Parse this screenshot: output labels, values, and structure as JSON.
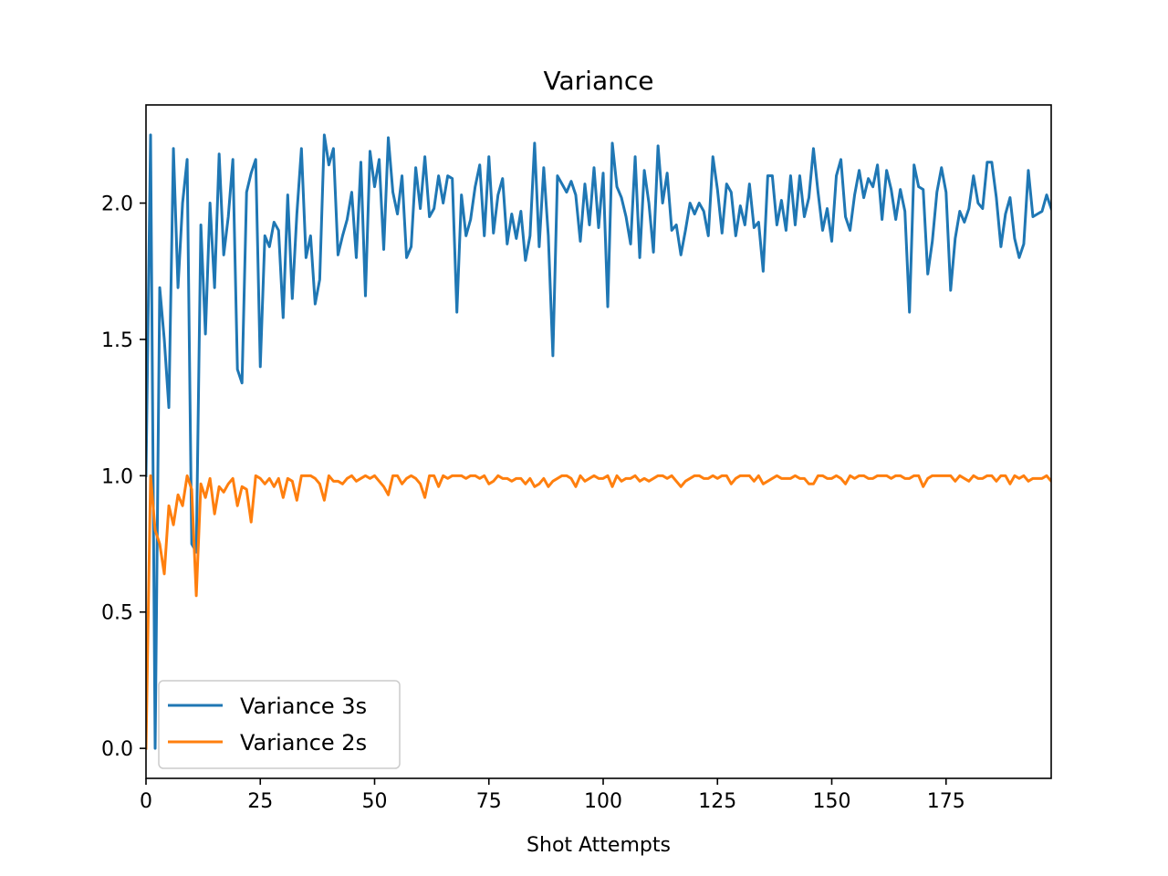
{
  "chart_data": {
    "type": "line",
    "title": "Variance",
    "xlabel": "Shot Attempts",
    "ylabel": "",
    "xlim": [
      0,
      198
    ],
    "ylim": [
      -0.11,
      2.36
    ],
    "xticks": [
      0,
      25,
      50,
      75,
      100,
      125,
      150,
      175
    ],
    "xtick_labels": [
      "0",
      "25",
      "50",
      "75",
      "100",
      "125",
      "150",
      "175"
    ],
    "yticks": [
      0.0,
      0.5,
      1.0,
      1.5,
      2.0
    ],
    "ytick_labels": [
      "0.0",
      "0.5",
      "1.0",
      "1.5",
      "2.0"
    ],
    "grid": false,
    "legend": {
      "placement": "lower-left"
    },
    "series": [
      {
        "name": "Variance 3s",
        "color": "#1f77b4",
        "values": [
          1.0,
          2.25,
          0.0,
          1.69,
          1.5,
          1.25,
          2.2,
          1.69,
          2.0,
          2.16,
          0.75,
          0.72,
          1.92,
          1.52,
          2.0,
          1.69,
          2.18,
          1.81,
          1.95,
          2.16,
          1.39,
          1.34,
          2.04,
          2.11,
          2.16,
          1.4,
          1.88,
          1.84,
          1.93,
          1.9,
          1.58,
          2.03,
          1.65,
          1.96,
          2.2,
          1.8,
          1.88,
          1.63,
          1.72,
          2.25,
          2.14,
          2.2,
          1.81,
          1.88,
          1.94,
          2.04,
          1.8,
          2.15,
          1.66,
          2.19,
          2.06,
          2.16,
          1.83,
          2.24,
          2.04,
          1.96,
          2.1,
          1.8,
          1.84,
          2.13,
          1.98,
          2.17,
          1.95,
          1.98,
          2.1,
          2.0,
          2.1,
          2.09,
          1.6,
          2.03,
          1.88,
          1.94,
          2.06,
          2.14,
          1.88,
          2.17,
          1.89,
          2.03,
          2.09,
          1.85,
          1.96,
          1.87,
          1.97,
          1.79,
          1.88,
          2.22,
          1.84,
          2.13,
          1.88,
          1.44,
          2.1,
          2.07,
          2.04,
          2.08,
          2.03,
          1.86,
          2.07,
          1.92,
          2.13,
          1.91,
          2.11,
          1.62,
          2.22,
          2.06,
          2.02,
          1.95,
          1.85,
          2.17,
          1.8,
          2.12,
          2.0,
          1.82,
          2.21,
          2.0,
          2.11,
          1.9,
          1.92,
          1.81,
          1.9,
          2.0,
          1.96,
          2.0,
          1.97,
          1.88,
          2.17,
          2.05,
          1.89,
          2.07,
          2.04,
          1.88,
          1.99,
          1.92,
          2.07,
          1.91,
          1.93,
          1.75,
          2.1,
          2.1,
          1.92,
          2.01,
          1.9,
          2.1,
          1.92,
          2.1,
          1.95,
          2.02,
          2.2,
          2.04,
          1.9,
          1.98,
          1.86,
          2.1,
          2.16,
          1.95,
          1.9,
          2.03,
          2.12,
          2.02,
          2.09,
          2.06,
          2.14,
          1.94,
          2.12,
          2.05,
          1.94,
          2.05,
          1.97,
          1.6,
          2.14,
          2.06,
          2.05,
          1.74,
          1.86,
          2.04,
          2.13,
          2.04,
          1.68,
          1.87,
          1.97,
          1.93,
          1.98,
          2.1,
          2.0,
          1.98,
          2.15,
          2.15,
          2.02,
          1.84,
          1.96,
          2.02,
          1.87,
          1.8,
          1.85,
          2.12,
          1.95,
          1.96,
          1.97,
          2.03,
          1.98
        ]
      },
      {
        "name": "Variance 2s",
        "color": "#ff7f0e",
        "values": [
          0.0,
          1.0,
          0.8,
          0.75,
          0.64,
          0.89,
          0.82,
          0.93,
          0.89,
          1.0,
          0.95,
          0.56,
          0.97,
          0.92,
          0.99,
          0.86,
          0.96,
          0.94,
          0.97,
          0.99,
          0.89,
          0.96,
          0.95,
          0.83,
          1.0,
          0.99,
          0.97,
          0.99,
          0.96,
          0.99,
          0.92,
          0.99,
          0.98,
          0.91,
          1.0,
          1.0,
          1.0,
          0.99,
          0.97,
          0.91,
          1.0,
          0.98,
          0.98,
          0.97,
          0.99,
          1.0,
          0.98,
          0.99,
          1.0,
          0.99,
          1.0,
          0.98,
          0.96,
          0.93,
          1.0,
          1.0,
          0.97,
          0.99,
          1.0,
          0.99,
          0.97,
          0.92,
          1.0,
          1.0,
          0.96,
          1.0,
          0.99,
          1.0,
          1.0,
          1.0,
          0.99,
          1.0,
          1.0,
          0.99,
          1.0,
          0.97,
          0.98,
          1.0,
          0.99,
          0.99,
          0.98,
          0.99,
          0.99,
          0.97,
          0.99,
          0.96,
          0.97,
          0.99,
          0.96,
          0.98,
          0.99,
          1.0,
          1.0,
          0.99,
          0.96,
          1.0,
          0.98,
          0.99,
          1.0,
          0.99,
          0.99,
          1.0,
          0.96,
          1.0,
          0.98,
          0.99,
          0.99,
          1.0,
          0.98,
          0.99,
          0.98,
          0.99,
          1.0,
          1.0,
          0.99,
          1.0,
          0.98,
          0.96,
          0.98,
          0.99,
          1.0,
          1.0,
          0.99,
          0.99,
          1.0,
          0.99,
          1.0,
          1.0,
          0.97,
          0.99,
          1.0,
          1.0,
          1.0,
          0.98,
          1.0,
          0.97,
          0.98,
          0.99,
          1.0,
          0.99,
          0.99,
          0.99,
          1.0,
          0.99,
          0.99,
          0.97,
          0.97,
          1.0,
          1.0,
          0.99,
          0.99,
          1.0,
          0.99,
          0.97,
          1.0,
          0.99,
          1.0,
          1.0,
          0.99,
          0.99,
          1.0,
          1.0,
          1.0,
          0.99,
          1.0,
          1.0,
          0.99,
          0.99,
          1.0,
          1.0,
          0.96,
          0.99,
          1.0,
          1.0,
          1.0,
          1.0,
          1.0,
          0.98,
          1.0,
          0.99,
          0.98,
          1.0,
          0.99,
          0.99,
          1.0,
          1.0,
          0.98,
          1.0,
          1.0,
          0.97,
          1.0,
          0.99,
          1.0,
          0.98,
          0.99,
          0.99,
          0.99,
          1.0,
          0.98,
          1.0,
          0.99,
          0.99,
          1.0,
          0.99
        ]
      }
    ]
  }
}
